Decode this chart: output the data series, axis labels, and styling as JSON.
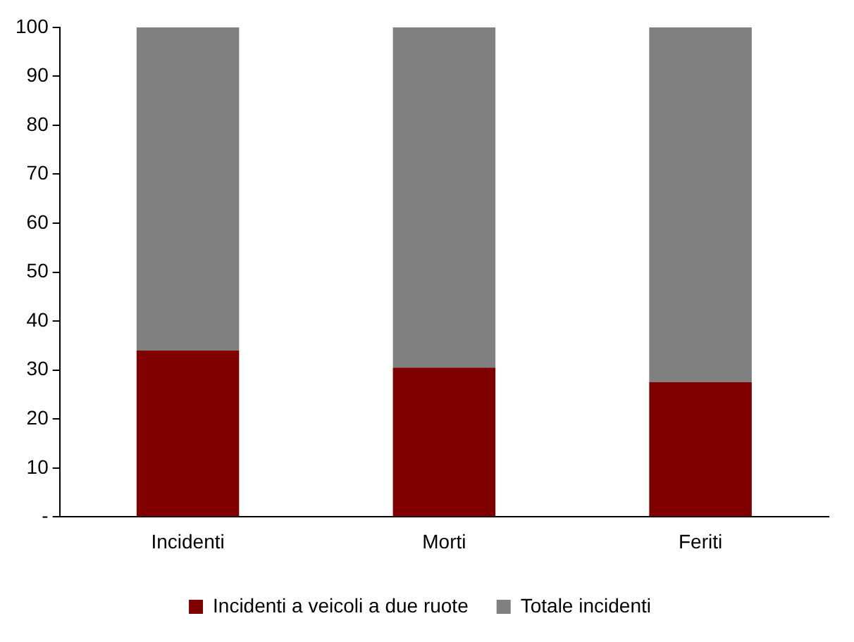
{
  "chart_data": {
    "type": "bar",
    "stacked": true,
    "categories": [
      "Incidenti",
      "Morti",
      "Feriti"
    ],
    "series": [
      {
        "name": "Incidenti a veicoli a due ruote",
        "color": "#800000",
        "values": [
          34,
          30.5,
          27.5
        ]
      },
      {
        "name": "Totale incidenti",
        "color": "#808080",
        "values": [
          66,
          69.5,
          72.5
        ]
      }
    ],
    "ylim": [
      0,
      100
    ],
    "yticks": [
      {
        "value": 0,
        "label": "-"
      },
      10,
      20,
      30,
      40,
      50,
      60,
      70,
      80,
      90,
      100
    ],
    "grid": false,
    "legend": "bottom"
  }
}
